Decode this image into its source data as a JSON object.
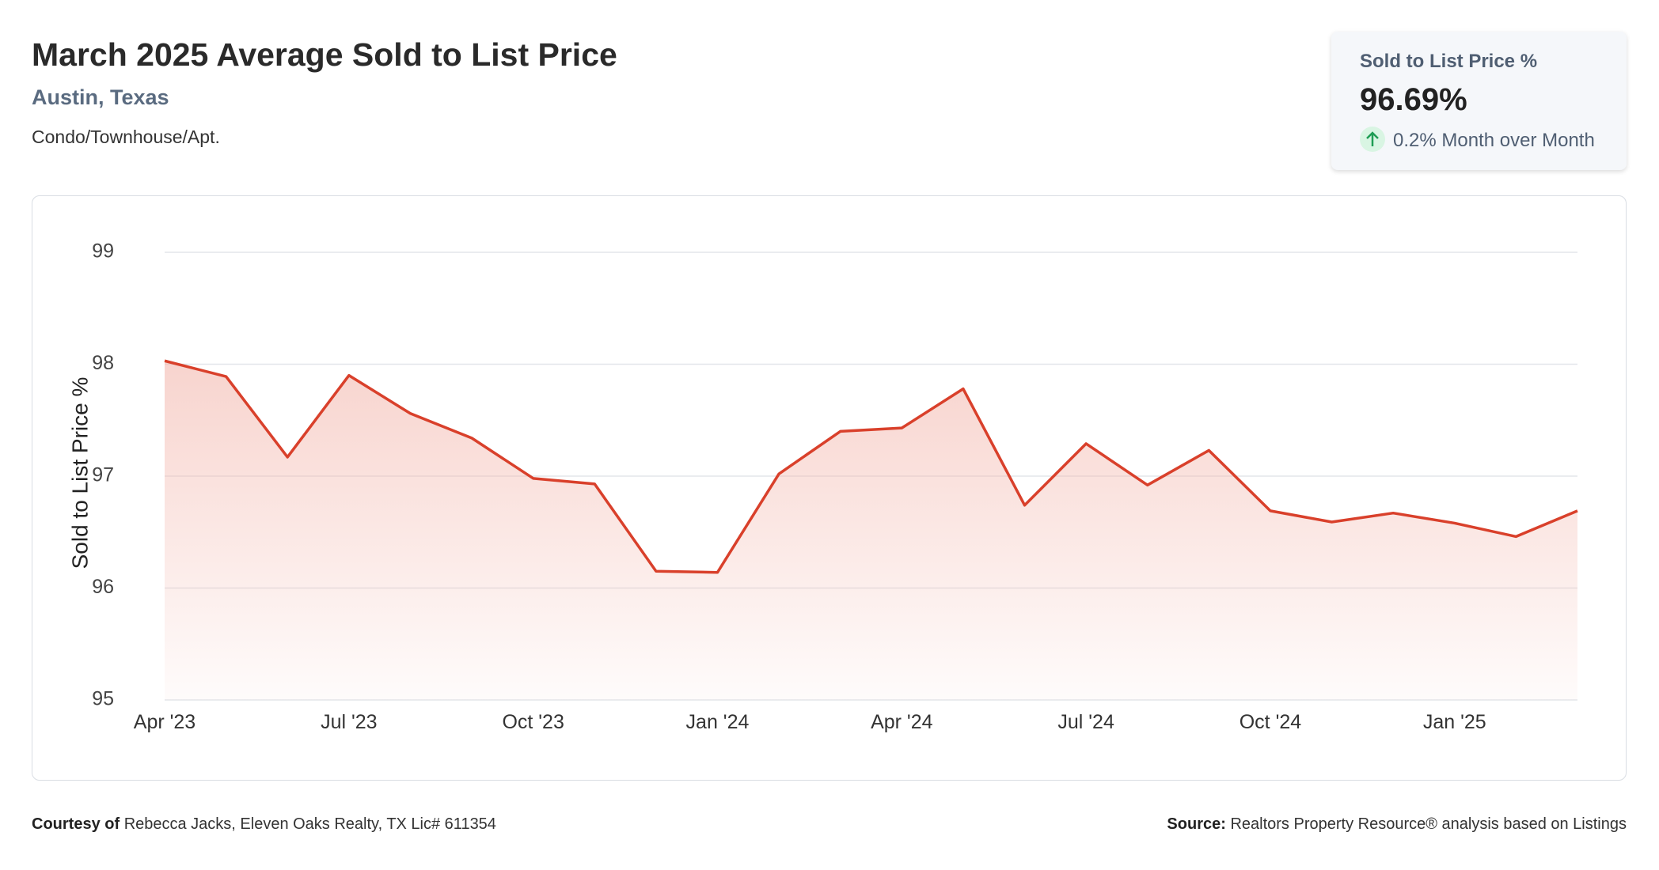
{
  "header": {
    "title": "March 2025 Average Sold to List Price",
    "location": "Austin, Texas",
    "property_type": "Condo/Townhouse/Apt."
  },
  "summary_card": {
    "label": "Sold to List Price %",
    "value": "96.69%",
    "change": "0.2% Month over Month"
  },
  "chart_data": {
    "type": "line",
    "y_label": "Sold to List Price %",
    "categories": [
      "Apr '23",
      null,
      null,
      "Jul '23",
      null,
      null,
      "Oct '23",
      null,
      null,
      "Jan '24",
      null,
      null,
      "Apr '24",
      null,
      null,
      "Jul '24",
      null,
      null,
      "Oct '24",
      null,
      null,
      "Jan '25",
      null,
      null
    ],
    "series": [
      {
        "name": "Sold to List Price %",
        "color": "#d9402b",
        "values": [
          98.03,
          97.89,
          97.17,
          97.9,
          97.56,
          97.34,
          96.98,
          96.93,
          96.15,
          96.14,
          97.02,
          97.4,
          97.43,
          97.78,
          96.74,
          97.29,
          96.92,
          97.23,
          96.69,
          96.59,
          96.67,
          96.58,
          96.46,
          96.69
        ]
      }
    ],
    "ylim": [
      95,
      99
    ],
    "yticks": [
      95,
      96,
      97,
      98,
      99
    ],
    "grid": true
  },
  "footer": {
    "courtesy_label": "Courtesy of",
    "courtesy": "Rebecca Jacks, Eleven Oaks Realty, TX Lic# 611354",
    "source_label": "Source:",
    "source": "Realtors Property Resource® analysis based on Listings"
  }
}
